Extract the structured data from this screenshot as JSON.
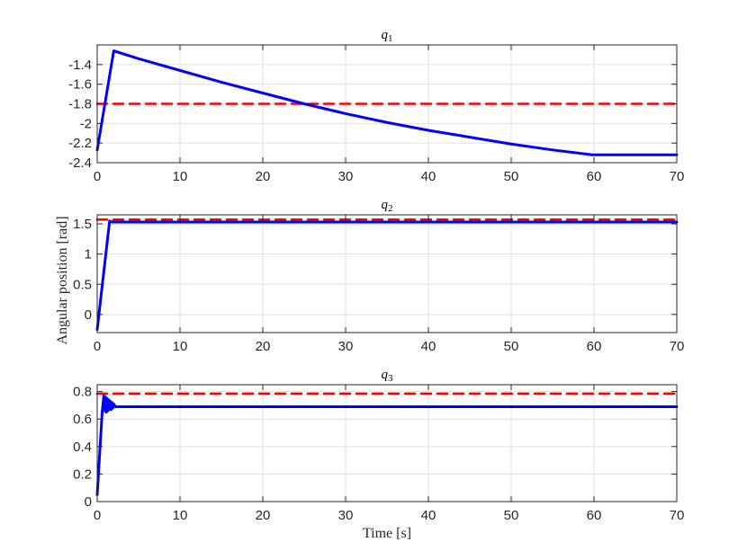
{
  "figure": {
    "ylabel": "Angular position [rad]",
    "xlabel": "Time [s]"
  },
  "colors": {
    "actual": "#0000ff",
    "reference": "#ff0000"
  },
  "chart_data": [
    {
      "type": "line",
      "title": "q1",
      "title_base": "q",
      "title_sub": "1",
      "xlim": [
        0,
        70
      ],
      "ylim": [
        -2.4,
        -1.2
      ],
      "xticks": [
        0,
        10,
        20,
        30,
        40,
        50,
        60,
        70
      ],
      "yticks": [
        -2.4,
        -2.2,
        -2,
        -1.8,
        -1.6,
        -1.4
      ],
      "ytick_labels": [
        "-2.4",
        "-2.2",
        "-2",
        "-1.8",
        "-1.6",
        "-1.4"
      ],
      "grid": true,
      "series": [
        {
          "style": "dashed",
          "color": "#ff0000",
          "x": [
            0,
            70
          ],
          "y": [
            -1.8,
            -1.8
          ]
        },
        {
          "style": "solid",
          "color": "#0000ff",
          "x": [
            0,
            2,
            5,
            10,
            15,
            20,
            25,
            30,
            35,
            40,
            45,
            50,
            55,
            59.8,
            70
          ],
          "y": [
            -2.27,
            -1.26,
            -1.34,
            -1.46,
            -1.58,
            -1.69,
            -1.8,
            -1.9,
            -1.99,
            -2.07,
            -2.14,
            -2.21,
            -2.27,
            -2.32,
            -2.32
          ]
        }
      ]
    },
    {
      "type": "line",
      "title": "q2",
      "title_base": "q",
      "title_sub": "2",
      "xlim": [
        0,
        70
      ],
      "ylim": [
        -0.3,
        1.65
      ],
      "xticks": [
        0,
        10,
        20,
        30,
        40,
        50,
        60,
        70
      ],
      "yticks": [
        0,
        0.5,
        1,
        1.5
      ],
      "ytick_labels": [
        "0",
        "0.5",
        "1",
        "1.5"
      ],
      "grid": true,
      "series": [
        {
          "style": "dashed",
          "color": "#ff0000",
          "x": [
            0,
            70
          ],
          "y": [
            1.571,
            1.571
          ]
        },
        {
          "style": "solid",
          "color": "#0000ff",
          "x": [
            0,
            1.5,
            1.8,
            70
          ],
          "y": [
            -0.25,
            1.55,
            1.53,
            1.53
          ]
        }
      ]
    },
    {
      "type": "line",
      "title": "q3",
      "title_base": "q",
      "title_sub": "3",
      "xlim": [
        0,
        70
      ],
      "ylim": [
        0,
        0.85
      ],
      "xticks": [
        0,
        10,
        20,
        30,
        40,
        50,
        60,
        70
      ],
      "yticks": [
        0,
        0.2,
        0.4,
        0.6,
        0.8
      ],
      "ytick_labels": [
        "0",
        "0.2",
        "0.4",
        "0.6",
        "0.8"
      ],
      "grid": true,
      "series": [
        {
          "style": "dashed",
          "color": "#ff0000",
          "x": [
            0,
            70
          ],
          "y": [
            0.785,
            0.785
          ]
        },
        {
          "style": "solid",
          "color": "#0000ff",
          "x": [
            0,
            0.3,
            0.6,
            0.8,
            0.9,
            1.0,
            1.1,
            1.2,
            1.3,
            1.4,
            1.5,
            1.6,
            1.7,
            1.8,
            1.9,
            2.0,
            2.2,
            70
          ],
          "y": [
            0.05,
            0.35,
            0.65,
            0.77,
            0.66,
            0.76,
            0.65,
            0.75,
            0.66,
            0.74,
            0.67,
            0.73,
            0.67,
            0.72,
            0.68,
            0.71,
            0.69,
            0.69
          ]
        }
      ]
    }
  ]
}
